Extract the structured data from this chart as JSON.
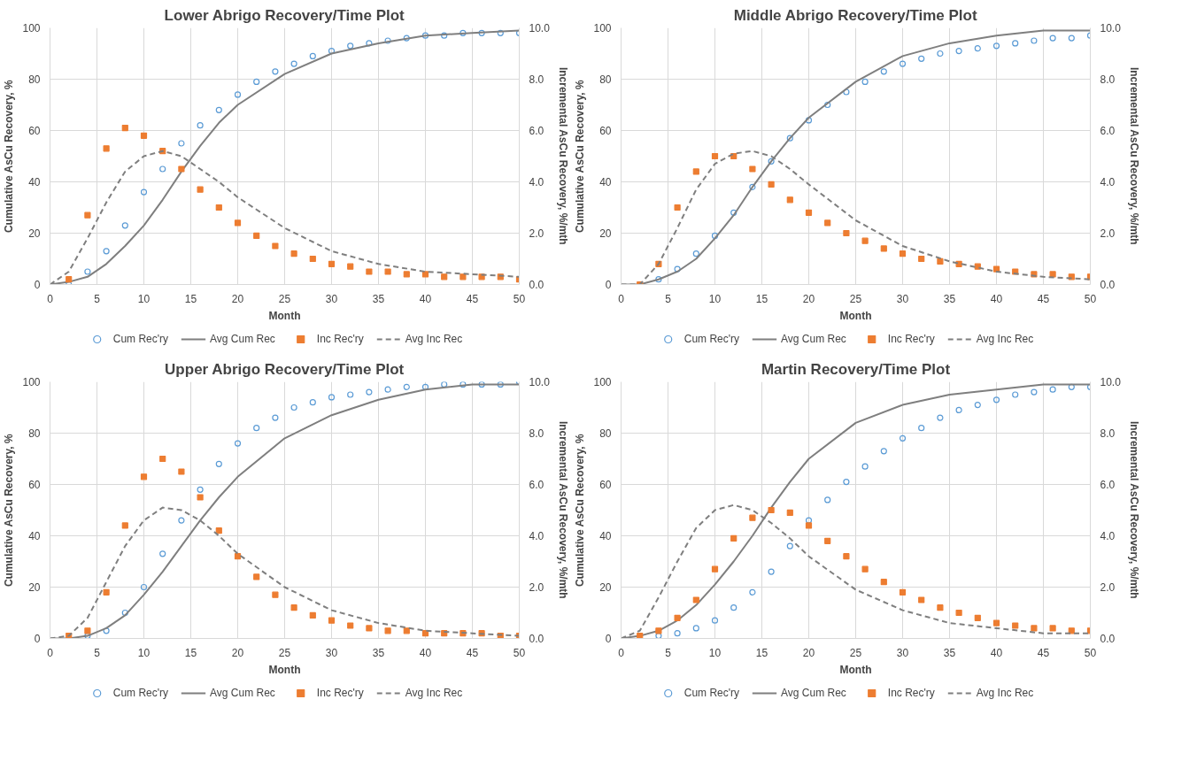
{
  "chart_data": [
    {
      "type": "scatter",
      "title": "Lower Abrigo Recovery/Time Plot",
      "xlabel": "Month",
      "ylabel": "Cumulative AsCu Recovery, %",
      "y2label": "Incremental AsCu Recovery, %/mth",
      "xlim": [
        0,
        50
      ],
      "xticks": [
        0,
        5,
        10,
        15,
        20,
        25,
        30,
        35,
        40,
        45,
        50
      ],
      "ylim": [
        0,
        100
      ],
      "yticks": [
        0,
        20,
        40,
        60,
        80,
        100
      ],
      "y2lim": [
        0,
        10
      ],
      "y2ticks": [
        {
          "value": 0,
          "label": "0.0"
        },
        {
          "value": 2,
          "label": "2.0"
        },
        {
          "value": 4,
          "label": "4.0"
        },
        {
          "value": 6,
          "label": "6.0"
        },
        {
          "value": 8,
          "label": "8.0"
        },
        {
          "value": 10,
          "label": "10.0"
        }
      ],
      "grid": true,
      "legend": "bottom",
      "series": [
        {
          "name": "Cum Rec'ry",
          "marker": "circle",
          "color": "#5b9bd5",
          "x": [
            2,
            4,
            6,
            8,
            10,
            12,
            14,
            16,
            18,
            20,
            22,
            24,
            26,
            28,
            30,
            32,
            34,
            36,
            38,
            40,
            42,
            44,
            46,
            48,
            50
          ],
          "values": [
            0,
            5,
            13,
            23,
            36,
            45,
            55,
            62,
            68,
            74,
            79,
            83,
            86,
            89,
            91,
            93,
            94,
            95,
            96,
            97,
            97,
            98,
            98,
            98,
            98
          ]
        },
        {
          "name": "Avg Cum Rec",
          "type": "line",
          "line_style": "solid",
          "color": "#7f7f7f",
          "x": [
            0,
            2,
            4,
            6,
            8,
            10,
            12,
            14,
            16,
            18,
            20,
            25,
            30,
            35,
            40,
            45,
            50
          ],
          "values": [
            0,
            1,
            3,
            8,
            15,
            23,
            33,
            44,
            54,
            63,
            70,
            82,
            90,
            94,
            97,
            98,
            99
          ]
        },
        {
          "name": "Inc Rec'ry",
          "marker": "square",
          "axis": "y2",
          "color": "#ed7d31",
          "x": [
            2,
            4,
            6,
            8,
            10,
            12,
            14,
            16,
            18,
            20,
            22,
            24,
            26,
            28,
            30,
            32,
            34,
            36,
            38,
            40,
            42,
            44,
            46,
            48,
            50
          ],
          "values": [
            0.2,
            2.7,
            5.3,
            6.1,
            5.8,
            5.2,
            4.5,
            3.7,
            3.0,
            2.4,
            1.9,
            1.5,
            1.2,
            1.0,
            0.8,
            0.7,
            0.5,
            0.5,
            0.4,
            0.4,
            0.3,
            0.3,
            0.3,
            0.3,
            0.2
          ]
        },
        {
          "name": "Avg Inc Rec",
          "type": "line",
          "line_style": "dashed",
          "axis": "y2",
          "color": "#7f7f7f",
          "x": [
            0,
            2,
            4,
            6,
            8,
            10,
            12,
            14,
            16,
            18,
            20,
            25,
            30,
            35,
            40,
            45,
            50
          ],
          "values": [
            0,
            0.5,
            1.8,
            3.2,
            4.4,
            5.0,
            5.2,
            5.0,
            4.5,
            4.0,
            3.4,
            2.2,
            1.3,
            0.8,
            0.5,
            0.4,
            0.3
          ]
        }
      ]
    },
    {
      "type": "scatter",
      "title": "Middle Abrigo Recovery/Time Plot",
      "xlabel": "Month",
      "ylabel": "Cumulative AsCu Recovery, %",
      "y2label": "Incremental AsCu Recovery, %/mth",
      "xlim": [
        0,
        50
      ],
      "xticks": [
        0,
        5,
        10,
        15,
        20,
        25,
        30,
        35,
        40,
        45,
        50
      ],
      "ylim": [
        0,
        100
      ],
      "yticks": [
        0,
        20,
        40,
        60,
        80,
        100
      ],
      "y2lim": [
        0,
        10
      ],
      "y2ticks": [
        {
          "value": 0,
          "label": "0.0"
        },
        {
          "value": 2,
          "label": "2.0"
        },
        {
          "value": 4,
          "label": "4.0"
        },
        {
          "value": 6,
          "label": "6.0"
        },
        {
          "value": 8,
          "label": "8.0"
        },
        {
          "value": 10,
          "label": "10.0"
        }
      ],
      "grid": true,
      "legend": "bottom",
      "series": [
        {
          "name": "Cum Rec'ry",
          "marker": "circle",
          "color": "#5b9bd5",
          "x": [
            4,
            6,
            8,
            10,
            12,
            14,
            16,
            18,
            20,
            22,
            24,
            26,
            28,
            30,
            32,
            34,
            36,
            38,
            40,
            42,
            44,
            46,
            48,
            50
          ],
          "values": [
            2,
            6,
            12,
            19,
            28,
            38,
            48,
            57,
            64,
            70,
            75,
            79,
            83,
            86,
            88,
            90,
            91,
            92,
            93,
            94,
            95,
            96,
            96,
            97
          ]
        },
        {
          "name": "Avg Cum Rec",
          "type": "line",
          "line_style": "solid",
          "color": "#7f7f7f",
          "x": [
            0,
            2,
            4,
            6,
            8,
            10,
            12,
            14,
            16,
            18,
            20,
            25,
            30,
            35,
            40,
            45,
            50
          ],
          "values": [
            0,
            0,
            2,
            5,
            10,
            18,
            27,
            38,
            48,
            57,
            65,
            79,
            89,
            94,
            97,
            99,
            99
          ]
        },
        {
          "name": "Inc Rec'ry",
          "marker": "square",
          "axis": "y2",
          "color": "#ed7d31",
          "x": [
            2,
            4,
            6,
            8,
            10,
            12,
            14,
            16,
            18,
            20,
            22,
            24,
            26,
            28,
            30,
            32,
            34,
            36,
            38,
            40,
            42,
            44,
            46,
            48,
            50
          ],
          "values": [
            0,
            0.8,
            3.0,
            4.4,
            5.0,
            5.0,
            4.5,
            3.9,
            3.3,
            2.8,
            2.4,
            2.0,
            1.7,
            1.4,
            1.2,
            1.0,
            0.9,
            0.8,
            0.7,
            0.6,
            0.5,
            0.4,
            0.4,
            0.3,
            0.3
          ]
        },
        {
          "name": "Avg Inc Rec",
          "type": "line",
          "line_style": "dashed",
          "axis": "y2",
          "color": "#7f7f7f",
          "x": [
            0,
            2,
            4,
            6,
            8,
            10,
            12,
            14,
            16,
            18,
            20,
            25,
            30,
            35,
            40,
            45,
            50
          ],
          "values": [
            0,
            0,
            0.8,
            2.2,
            3.7,
            4.7,
            5.1,
            5.2,
            5.0,
            4.5,
            3.9,
            2.5,
            1.5,
            0.9,
            0.5,
            0.3,
            0.2
          ]
        }
      ]
    },
    {
      "type": "scatter",
      "title": "Upper Abrigo Recovery/Time Plot",
      "xlabel": "Month",
      "ylabel": "Cumulative AsCu Recovery, %",
      "y2label": "Incremental AsCu Recovery, %/mth",
      "xlim": [
        0,
        50
      ],
      "xticks": [
        0,
        5,
        10,
        15,
        20,
        25,
        30,
        35,
        40,
        45,
        50
      ],
      "ylim": [
        0,
        100
      ],
      "yticks": [
        0,
        20,
        40,
        60,
        80,
        100
      ],
      "y2lim": [
        0,
        10
      ],
      "y2ticks": [
        {
          "value": 0,
          "label": "0.0"
        },
        {
          "value": 2,
          "label": "2.0"
        },
        {
          "value": 4,
          "label": "4.0"
        },
        {
          "value": 6,
          "label": "6.0"
        },
        {
          "value": 8,
          "label": "8.0"
        },
        {
          "value": 10,
          "label": "10.0"
        }
      ],
      "grid": true,
      "legend": "bottom",
      "series": [
        {
          "name": "Cum Rec'ry",
          "marker": "circle",
          "color": "#5b9bd5",
          "x": [
            4,
            6,
            8,
            10,
            12,
            14,
            16,
            18,
            20,
            22,
            24,
            26,
            28,
            30,
            32,
            34,
            36,
            38,
            40,
            42,
            44,
            46,
            48,
            50
          ],
          "values": [
            1,
            3,
            10,
            20,
            33,
            46,
            58,
            68,
            76,
            82,
            86,
            90,
            92,
            94,
            95,
            96,
            97,
            98,
            98,
            99,
            99,
            99,
            99,
            100
          ]
        },
        {
          "name": "Avg Cum Rec",
          "type": "line",
          "line_style": "solid",
          "color": "#7f7f7f",
          "x": [
            0,
            2,
            4,
            6,
            8,
            10,
            12,
            14,
            16,
            18,
            20,
            25,
            30,
            35,
            40,
            45,
            50
          ],
          "values": [
            0,
            0,
            1,
            4,
            9,
            17,
            26,
            36,
            46,
            55,
            63,
            78,
            87,
            93,
            97,
            99,
            99
          ]
        },
        {
          "name": "Inc Rec'ry",
          "marker": "square",
          "axis": "y2",
          "color": "#ed7d31",
          "x": [
            2,
            4,
            6,
            8,
            10,
            12,
            14,
            16,
            18,
            20,
            22,
            24,
            26,
            28,
            30,
            32,
            34,
            36,
            38,
            40,
            42,
            44,
            46,
            48,
            50
          ],
          "values": [
            0.1,
            0.3,
            1.8,
            4.4,
            6.3,
            7.0,
            6.5,
            5.5,
            4.2,
            3.2,
            2.4,
            1.7,
            1.2,
            0.9,
            0.7,
            0.5,
            0.4,
            0.3,
            0.3,
            0.2,
            0.2,
            0.2,
            0.2,
            0.1,
            0.1
          ]
        },
        {
          "name": "Avg Inc Rec",
          "type": "line",
          "line_style": "dashed",
          "axis": "y2",
          "color": "#7f7f7f",
          "x": [
            0,
            2,
            4,
            6,
            8,
            10,
            12,
            14,
            16,
            18,
            20,
            25,
            30,
            35,
            40,
            45,
            50
          ],
          "values": [
            0,
            0.1,
            0.8,
            2.2,
            3.6,
            4.6,
            5.1,
            5.0,
            4.6,
            4.0,
            3.3,
            2.0,
            1.1,
            0.6,
            0.3,
            0.2,
            0.1
          ]
        }
      ]
    },
    {
      "type": "scatter",
      "title": "Martin Recovery/Time Plot",
      "xlabel": "Month",
      "ylabel": "Cumulative AsCu Recovery, %",
      "y2label": "Incremental AsCu Recovery, %/mth",
      "xlim": [
        0,
        50
      ],
      "xticks": [
        0,
        5,
        10,
        15,
        20,
        25,
        30,
        35,
        40,
        45,
        50
      ],
      "ylim": [
        0,
        100
      ],
      "yticks": [
        0,
        20,
        40,
        60,
        80,
        100
      ],
      "y2lim": [
        0,
        10
      ],
      "y2ticks": [
        {
          "value": 0,
          "label": "0.0"
        },
        {
          "value": 2,
          "label": "2.0"
        },
        {
          "value": 4,
          "label": "4.0"
        },
        {
          "value": 6,
          "label": "6.0"
        },
        {
          "value": 8,
          "label": "8.0"
        },
        {
          "value": 10,
          "label": "10.0"
        }
      ],
      "grid": true,
      "legend": "bottom",
      "series": [
        {
          "name": "Cum Rec'ry",
          "marker": "circle",
          "color": "#5b9bd5",
          "x": [
            4,
            6,
            8,
            10,
            12,
            14,
            16,
            18,
            20,
            22,
            24,
            26,
            28,
            30,
            32,
            34,
            36,
            38,
            40,
            42,
            44,
            46,
            48,
            50
          ],
          "values": [
            1,
            2,
            4,
            7,
            12,
            18,
            26,
            36,
            46,
            54,
            61,
            67,
            73,
            78,
            82,
            86,
            89,
            91,
            93,
            95,
            96,
            97,
            98,
            98
          ]
        },
        {
          "name": "Avg Cum Rec",
          "type": "line",
          "line_style": "solid",
          "color": "#7f7f7f",
          "x": [
            0,
            2,
            4,
            6,
            8,
            10,
            12,
            14,
            16,
            18,
            20,
            25,
            30,
            35,
            40,
            45,
            50
          ],
          "values": [
            0,
            1,
            3,
            7,
            13,
            21,
            30,
            40,
            51,
            61,
            70,
            84,
            91,
            95,
            97,
            99,
            99
          ]
        },
        {
          "name": "Inc Rec'ry",
          "marker": "square",
          "axis": "y2",
          "color": "#ed7d31",
          "x": [
            2,
            4,
            6,
            8,
            10,
            12,
            14,
            16,
            18,
            20,
            22,
            24,
            26,
            28,
            30,
            32,
            34,
            36,
            38,
            40,
            42,
            44,
            46,
            48,
            50
          ],
          "values": [
            0.1,
            0.3,
            0.8,
            1.5,
            2.7,
            3.9,
            4.7,
            5.0,
            4.9,
            4.4,
            3.8,
            3.2,
            2.7,
            2.2,
            1.8,
            1.5,
            1.2,
            1.0,
            0.8,
            0.6,
            0.5,
            0.4,
            0.4,
            0.3,
            0.3
          ]
        },
        {
          "name": "Avg Inc Rec",
          "type": "line",
          "line_style": "dashed",
          "axis": "y2",
          "color": "#7f7f7f",
          "x": [
            0,
            2,
            4,
            6,
            8,
            10,
            12,
            14,
            16,
            18,
            20,
            25,
            30,
            35,
            40,
            45,
            50
          ],
          "values": [
            0,
            0.3,
            1.6,
            3.0,
            4.3,
            5.0,
            5.2,
            5.0,
            4.5,
            3.9,
            3.2,
            1.9,
            1.1,
            0.6,
            0.4,
            0.2,
            0.2
          ]
        }
      ]
    }
  ]
}
